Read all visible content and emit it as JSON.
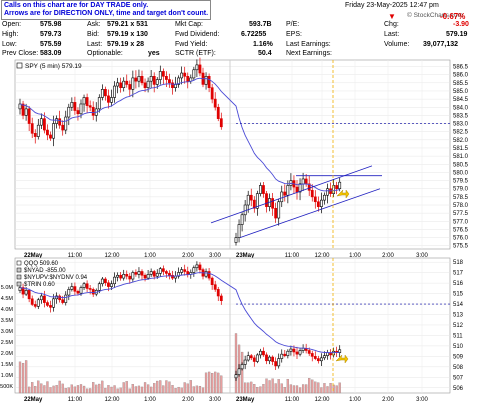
{
  "header": {
    "note_line1": "Calls on this chart are for DAY TRADE only.",
    "note_line2": "Arrows are for DIRECTION ONLY, time and target don't count.",
    "datetime": "Friday   23-May-2025   12:47 pm",
    "brand": "© StockCharts.com",
    "open_label": "Open:",
    "open_value": "575.98",
    "high_label": "High:",
    "high_value": "579.73",
    "low_label": "Low:",
    "low_value": "575.59",
    "prevclose_label": "Prev Close:",
    "prevclose_value": "583.09",
    "ask_label": "Ask:",
    "ask_value": "579.21 x 531",
    "bid_label": "Bid:",
    "bid_value": "579.19 x 130",
    "last_label": "Last:",
    "last_value": "579.19 x 28",
    "optionable_label": "Optionable:",
    "optionable_value": "yes",
    "mktcap_label": "Mkt Cap:",
    "mktcap_value": "593.7B",
    "fwddiv_label": "Fwd Dividend:",
    "fwddiv_value": "6.72255",
    "fwdyield_label": "Fwd Yield:",
    "fwdyield_value": "1.16%",
    "sctr_label": "SCTR (ETF):",
    "sctr_value": "50.4",
    "pe_label": "P/E:",
    "pe_value": "",
    "eps_label": "EPS:",
    "eps_value": "",
    "lastearn_label": "Last Earnings:",
    "lastearn_value": "",
    "nextearn_label": "Next Earnings:",
    "nextearn_value": "",
    "pct_change": "-0.67%",
    "chg_label": "Chg:",
    "chg_value": "-3.90",
    "last2_label": "Last:",
    "last2_value": "579.19",
    "volume_label": "Volume:",
    "volume_value": "39,077,132"
  },
  "colors": {
    "up": "#000000",
    "down": "#e00000",
    "up_fill": "#ffffff",
    "ma": "#4b4bd6",
    "trend": "#2020c0",
    "level": "#0000a0",
    "cursor": "#f0b000",
    "volume": "#e8a0a0"
  },
  "chart_data": [
    {
      "type": "candlestick",
      "legend": "SPY (5 min) 579.19",
      "ylim": [
        575.3,
        586.9
      ],
      "y_ticks": [
        575.5,
        576.0,
        576.5,
        577.0,
        577.5,
        578.0,
        578.5,
        579.0,
        579.5,
        580.0,
        580.5,
        581.0,
        581.5,
        582.0,
        582.5,
        583.0,
        583.5,
        584.0,
        584.5,
        585.0,
        585.5,
        586.0,
        586.5
      ],
      "x_ticks": [
        "22May",
        "11:00",
        "12:00",
        "1:00",
        "2:00",
        "3:00",
        "23May",
        "11:00",
        "12:00",
        "1:00",
        "2:00",
        "3:00"
      ],
      "horizontal_level": 583.0,
      "day1_closes": [
        584.2,
        583.5,
        583.9,
        583.0,
        582.4,
        582.2,
        582.9,
        583.3,
        582.6,
        582.3,
        582.1,
        583.0,
        583.3,
        582.9,
        582.6,
        583.4,
        584.0,
        584.3,
        583.8,
        583.6,
        584.2,
        584.6,
        584.1,
        584.0,
        583.5,
        583.9,
        584.6,
        585.1,
        584.7,
        584.3,
        584.6,
        585.3,
        585.5,
        585.2,
        585.6,
        585.4,
        585.1,
        585.8,
        585.6,
        585.9,
        585.5,
        585.2,
        585.6,
        585.9,
        585.4,
        585.7,
        586.2,
        585.9,
        585.7,
        585.5,
        585.2,
        585.4,
        585.8,
        586.1,
        585.9,
        585.6,
        585.8,
        586.3,
        586.6,
        586.1,
        585.4,
        585.9,
        585.2,
        584.5,
        584.0,
        583.3,
        582.8
      ],
      "day2_closes": [
        576.0,
        576.8,
        577.4,
        578.0,
        578.6,
        578.3,
        577.8,
        578.7,
        579.2,
        578.7,
        577.9,
        578.4,
        577.8,
        577.2,
        578.2,
        578.8,
        578.6,
        579.2,
        579.5,
        579.1,
        578.8,
        579.3,
        579.6,
        579.3,
        578.9,
        578.5,
        578.2,
        577.9,
        578.3,
        578.6,
        579.0,
        578.7,
        579.2,
        579.0,
        579.4
      ],
      "trend_upper": [
        [
          576.9,
          578.2
        ],
        [
          580.4,
          581.2
        ]
      ],
      "trend_lower": [
        [
          576.0,
          575.6
        ],
        [
          579.0,
          576.7
        ]
      ]
    },
    {
      "type": "candlestick",
      "legend": [
        "QQQ 509.60",
        "$NYAD -855.00",
        "$NYUPV:$NYDNV 0.94",
        "$TRIN 0.60"
      ],
      "ylim": [
        505.5,
        518.4
      ],
      "y_ticks": [
        506,
        507,
        508,
        509,
        510,
        511,
        512,
        513,
        514,
        515,
        516,
        517,
        518
      ],
      "volume_ticks": [
        "500K",
        "1.0M",
        "1.5M",
        "2.0M",
        "2.5M",
        "3.0M",
        "3.5M",
        "4.0M",
        "4.5M",
        "5.0M"
      ],
      "horizontal_level": 514.0
    }
  ]
}
